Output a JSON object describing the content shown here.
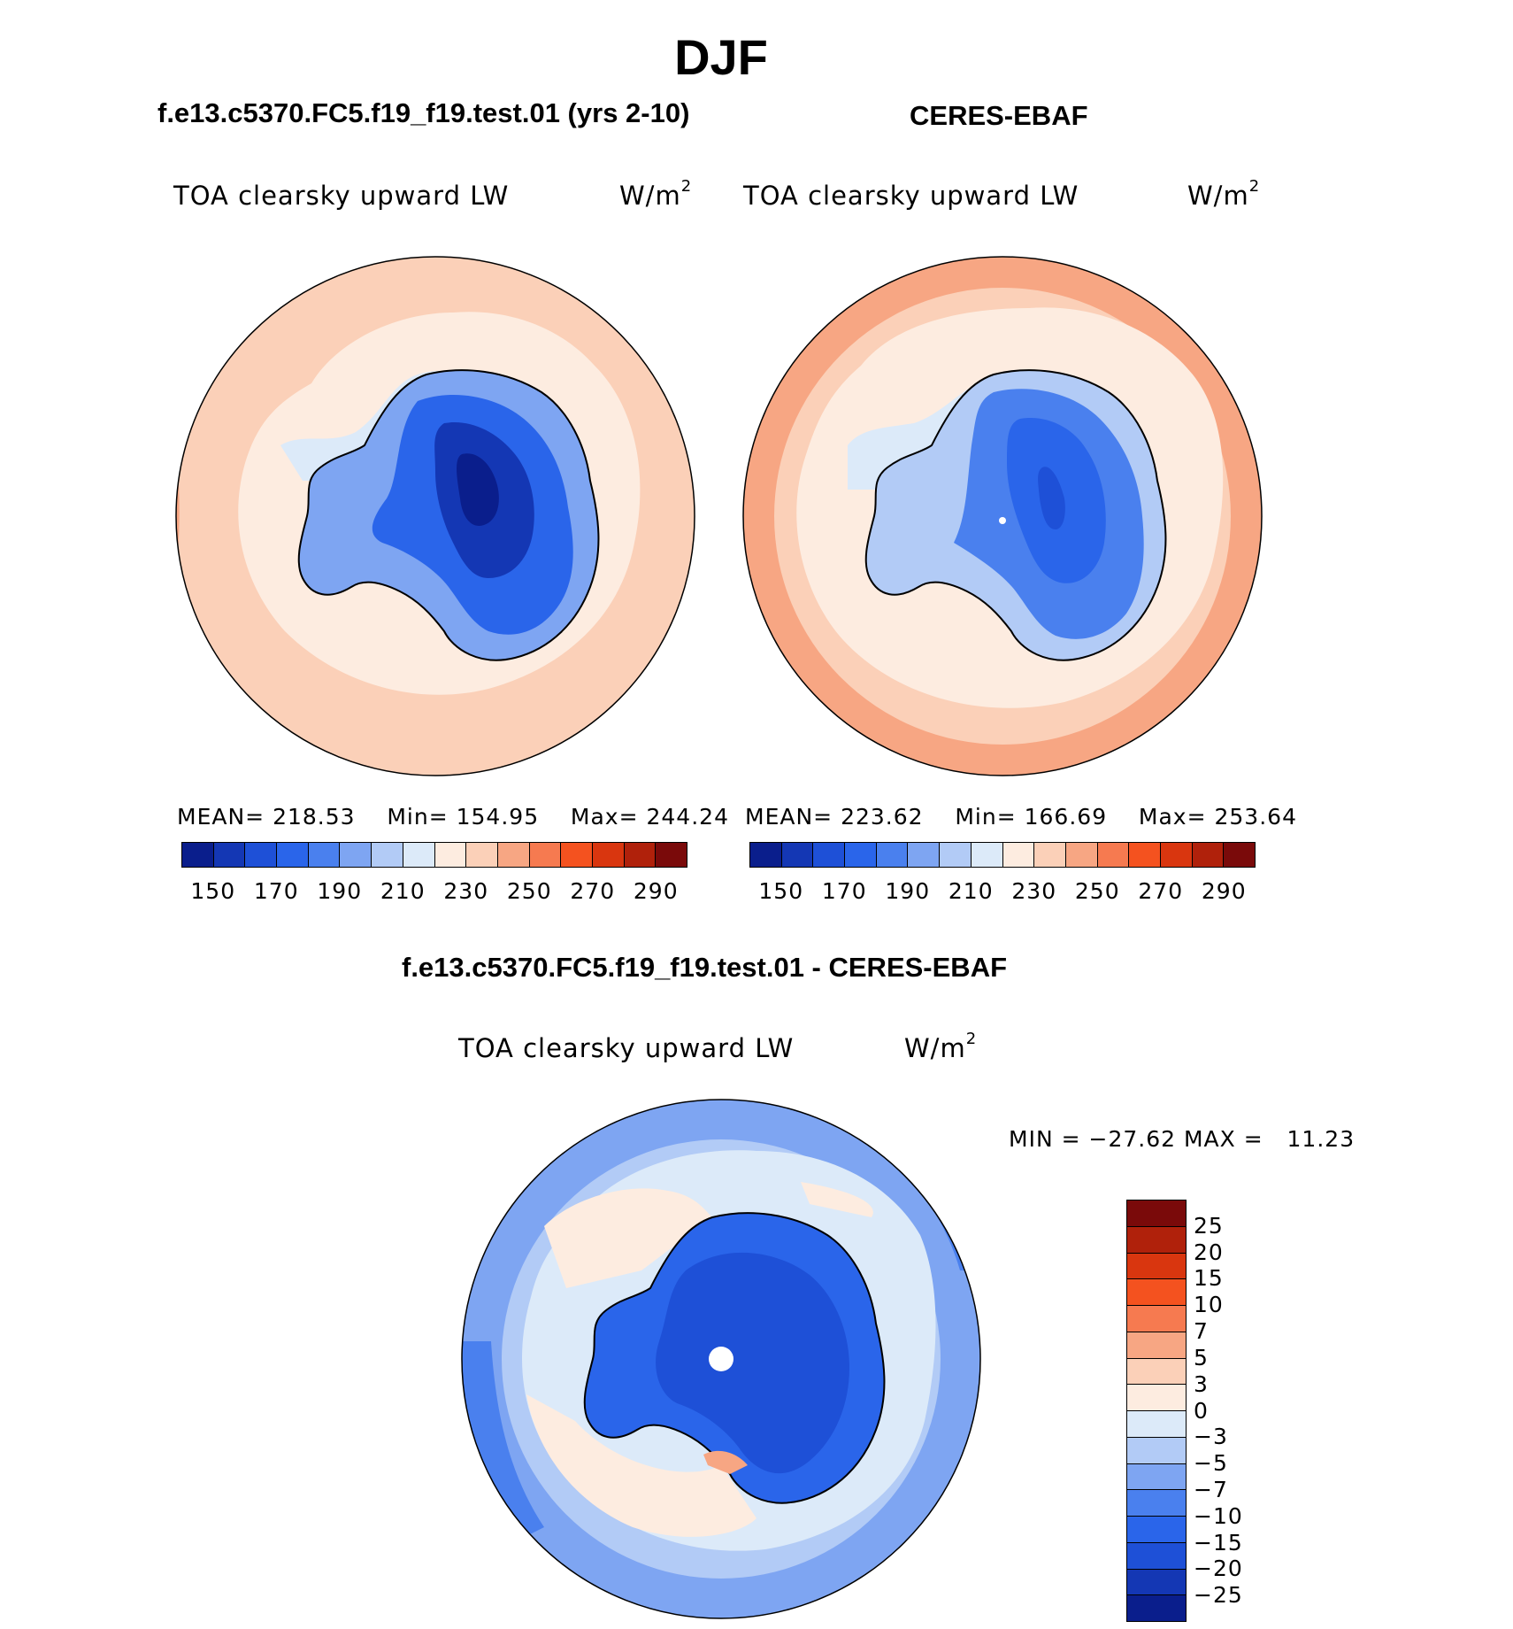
{
  "chart_data": [
    {
      "type": "heatmap",
      "title": "f.e13.c5370.FC5.f19_f19.test.01 (yrs 2-10)",
      "variable": "TOA clearsky upward LW",
      "units": "W/m",
      "units_superscript": "2",
      "season": "DJF",
      "stats": {
        "mean_label": "MEAN=",
        "mean": "218.53",
        "min_label": "Min=",
        "min": "154.95",
        "max_label": "Max=",
        "max": "244.24"
      },
      "levels": [
        "150",
        "170",
        "190",
        "210",
        "230",
        "250",
        "270",
        "290"
      ],
      "colors": [
        "#0a1e8c",
        "#1437b4",
        "#1e50d7",
        "#2a65ea",
        "#4a80ee",
        "#7ea5f2",
        "#b2cbf6",
        "#dceaf9",
        "#fdece0",
        "#fbd0b8",
        "#f7a683",
        "#f67a50",
        "#f4521f",
        "#d9360f",
        "#b0210b",
        "#7a0a0a"
      ]
    },
    {
      "type": "heatmap",
      "title": "CERES-EBAF",
      "variable": "TOA clearsky upward LW",
      "units": "W/m",
      "units_superscript": "2",
      "stats": {
        "mean_label": "MEAN=",
        "mean": "223.62",
        "min_label": "Min=",
        "min": "166.69",
        "max_label": "Max=",
        "max": "253.64"
      },
      "levels": [
        "150",
        "170",
        "190",
        "210",
        "230",
        "250",
        "270",
        "290"
      ],
      "colors": [
        "#0a1e8c",
        "#1437b4",
        "#1e50d7",
        "#2a65ea",
        "#4a80ee",
        "#7ea5f2",
        "#b2cbf6",
        "#dceaf9",
        "#fdece0",
        "#fbd0b8",
        "#f7a683",
        "#f67a50",
        "#f4521f",
        "#d9360f",
        "#b0210b",
        "#7a0a0a"
      ]
    },
    {
      "type": "heatmap",
      "title": "f.e13.c5370.FC5.f19_f19.test.01 - CERES-EBAF",
      "variable": "TOA clearsky upward LW",
      "units": "W/m",
      "units_superscript": "2",
      "stats": {
        "min_label": "MIN =",
        "min": "−27.62",
        "max_label": "MAX =",
        "max": "11.23"
      },
      "levels": [
        "25",
        "20",
        "15",
        "10",
        "7",
        "5",
        "3",
        "0",
        "−3",
        "−5",
        "−7",
        "−10",
        "−15",
        "−20",
        "−25"
      ],
      "colors": [
        "#7a0a0a",
        "#b0210b",
        "#d9360f",
        "#f4521f",
        "#f67a50",
        "#f7a683",
        "#fbd0b8",
        "#fdece0",
        "#dceaf9",
        "#b2cbf6",
        "#7ea5f2",
        "#4a80ee",
        "#2a65ea",
        "#1e50d7",
        "#1437b4",
        "#0a1e8c"
      ]
    }
  ]
}
